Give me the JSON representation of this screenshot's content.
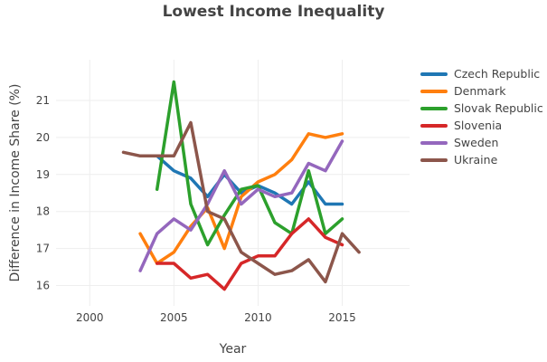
{
  "chart_data": {
    "type": "line",
    "title": "Lowest Income Inequality",
    "xlabel": "Year",
    "ylabel": "Difference in Income Share (%)",
    "xlim": [
      1998,
      2019
    ],
    "ylim": [
      15.45,
      22.1
    ],
    "xticks": [
      2000,
      2005,
      2010,
      2015
    ],
    "yticks": [
      16,
      17,
      18,
      19,
      20,
      21
    ],
    "grid": true,
    "legend_position": "top-right",
    "series": [
      {
        "name": "Czech Republic",
        "color": "#1f77b4",
        "x": [
          2004,
          2005,
          2006,
          2007,
          2008,
          2009,
          2010,
          2011,
          2012,
          2013,
          2014,
          2015
        ],
        "y": [
          19.5,
          19.1,
          18.9,
          18.4,
          19.0,
          18.5,
          18.7,
          18.5,
          18.2,
          18.8,
          18.2,
          18.2
        ]
      },
      {
        "name": "Denmark",
        "color": "#ff7f0e",
        "x": [
          2003,
          2004,
          2005,
          2006,
          2007,
          2008,
          2009,
          2010,
          2011,
          2012,
          2013,
          2014,
          2015
        ],
        "y": [
          17.4,
          16.6,
          16.9,
          17.6,
          18.1,
          17.0,
          18.4,
          18.8,
          19.0,
          19.4,
          20.1,
          20.0,
          20.1
        ]
      },
      {
        "name": "Slovak Republic",
        "color": "#2ca02c",
        "x": [
          2004,
          2005,
          2006,
          2007,
          2008,
          2009,
          2010,
          2011,
          2012,
          2013,
          2014,
          2015
        ],
        "y": [
          18.6,
          21.5,
          18.2,
          17.1,
          17.9,
          18.6,
          18.7,
          17.7,
          17.4,
          19.1,
          17.4,
          17.8
        ]
      },
      {
        "name": "Slovenia",
        "color": "#d62728",
        "x": [
          2004,
          2005,
          2006,
          2007,
          2008,
          2009,
          2010,
          2011,
          2012,
          2013,
          2014,
          2015
        ],
        "y": [
          16.6,
          16.6,
          16.2,
          16.3,
          15.9,
          16.6,
          16.8,
          16.8,
          17.4,
          17.8,
          17.3,
          17.1
        ]
      },
      {
        "name": "Sweden",
        "color": "#9467bd",
        "x": [
          2003,
          2004,
          2005,
          2006,
          2007,
          2008,
          2009,
          2010,
          2011,
          2012,
          2013,
          2014,
          2015
        ],
        "y": [
          16.4,
          17.4,
          17.8,
          17.5,
          18.2,
          19.1,
          18.2,
          18.6,
          18.4,
          18.5,
          19.3,
          19.1,
          19.9
        ]
      },
      {
        "name": "Ukraine",
        "color": "#8c564b",
        "x": [
          2002,
          2003,
          2004,
          2005,
          2006,
          2007,
          2008,
          2009,
          2010,
          2011,
          2012,
          2013,
          2014,
          2015,
          2016
        ],
        "y": [
          19.6,
          19.5,
          19.5,
          19.5,
          20.4,
          18.0,
          17.8,
          16.9,
          16.6,
          16.3,
          16.4,
          16.7,
          16.1,
          17.4,
          16.9
        ]
      }
    ]
  }
}
